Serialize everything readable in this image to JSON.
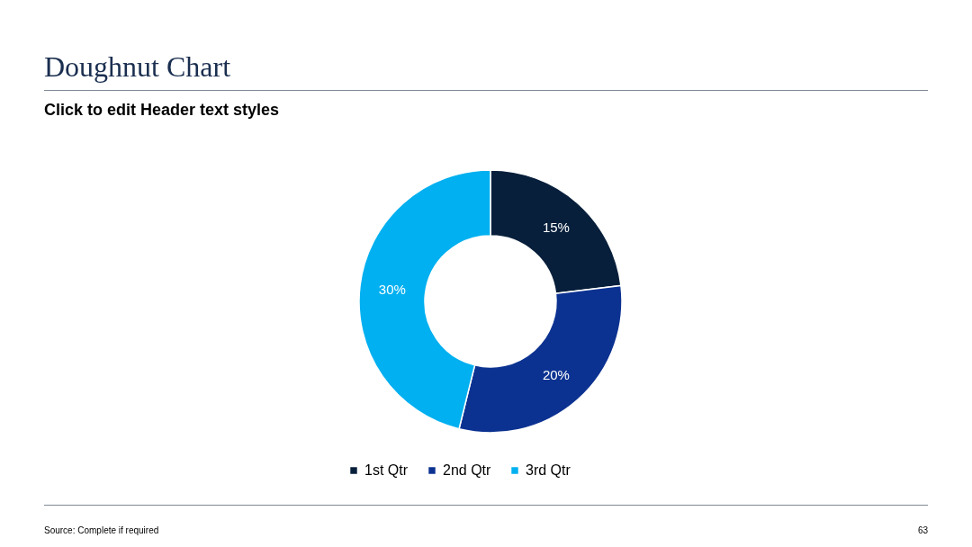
{
  "chart_data": {
    "type": "donut",
    "title": "Doughnut Chart",
    "subtitle": "Click to edit Header text styles",
    "categories": [
      "1st Qtr",
      "2nd Qtr",
      "3rd Qtr"
    ],
    "values": [
      15,
      20,
      30
    ],
    "colors": [
      "#071f3b",
      "#0c3291",
      "#00b0f0"
    ],
    "value_labels": [
      "15%",
      "20%",
      "30%"
    ],
    "legend": "bottom",
    "annotations": [
      "Source: Complete if required",
      "63"
    ]
  }
}
